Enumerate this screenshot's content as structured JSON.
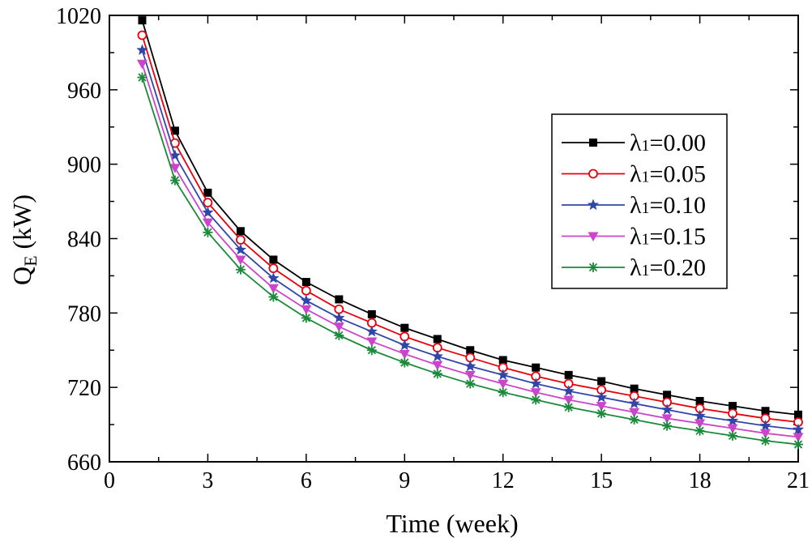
{
  "chart_data": {
    "type": "line",
    "title": "",
    "xlabel": "Time (week)",
    "ylabel": {
      "main": "Q",
      "sub": "E",
      "unit": " (kW)"
    },
    "xlim": [
      0,
      21
    ],
    "ylim": [
      660,
      1020
    ],
    "xticks": [
      0,
      3,
      6,
      9,
      12,
      15,
      18,
      21
    ],
    "yticks": [
      660,
      720,
      780,
      840,
      900,
      960,
      1020
    ],
    "xtick_labels": [
      "0",
      "3",
      "6",
      "9",
      "12",
      "15",
      "18",
      "21"
    ],
    "ytick_labels": [
      "660",
      "720",
      "780",
      "840",
      "900",
      "960",
      "1020"
    ],
    "x": [
      1,
      2,
      3,
      4,
      5,
      6,
      7,
      8,
      9,
      10,
      11,
      12,
      13,
      14,
      15,
      16,
      17,
      18,
      19,
      20,
      21
    ],
    "legend_position": "right-center",
    "grid": false,
    "series": [
      {
        "name": "λ1=0.00",
        "label_prefix": "λ",
        "label_sub": "1",
        "label_suffix": "=0.00",
        "color": "#000000",
        "marker": "square",
        "values": [
          1016,
          927,
          877,
          846,
          823,
          805,
          791,
          779,
          768,
          759,
          750,
          742,
          736,
          730,
          725,
          719,
          714,
          709,
          705,
          701,
          698
        ]
      },
      {
        "name": "λ1=0.05",
        "label_prefix": "λ",
        "label_sub": "1",
        "label_suffix": "=0.05",
        "color": "#e8000b",
        "marker": "circle",
        "values": [
          1004,
          917,
          869,
          839,
          816,
          798,
          783,
          772,
          761,
          752,
          744,
          736,
          729,
          723,
          718,
          713,
          708,
          703,
          699,
          695,
          692
        ]
      },
      {
        "name": "λ1=0.10",
        "label_prefix": "λ",
        "label_sub": "1",
        "label_suffix": "=0.10",
        "color": "#2f46a8",
        "marker": "star",
        "values": [
          992,
          907,
          861,
          831,
          808,
          790,
          776,
          765,
          754,
          745,
          737,
          730,
          723,
          717,
          712,
          707,
          702,
          697,
          693,
          689,
          686
        ]
      },
      {
        "name": "λ1=0.15",
        "label_prefix": "λ",
        "label_sub": "1",
        "label_suffix": "=0.15",
        "color": "#cc44cc",
        "marker": "triangle-down",
        "values": [
          981,
          897,
          853,
          823,
          800,
          783,
          769,
          757,
          747,
          738,
          730,
          723,
          716,
          710,
          705,
          700,
          695,
          691,
          687,
          683,
          680
        ]
      },
      {
        "name": "λ1=0.20",
        "label_prefix": "λ",
        "label_sub": "1",
        "label_suffix": "=0.20",
        "color": "#1a8a3a",
        "marker": "asterisk",
        "values": [
          970,
          887,
          845,
          815,
          793,
          776,
          762,
          750,
          740,
          731,
          723,
          716,
          710,
          704,
          699,
          694,
          689,
          685,
          681,
          677,
          674
        ]
      }
    ]
  }
}
